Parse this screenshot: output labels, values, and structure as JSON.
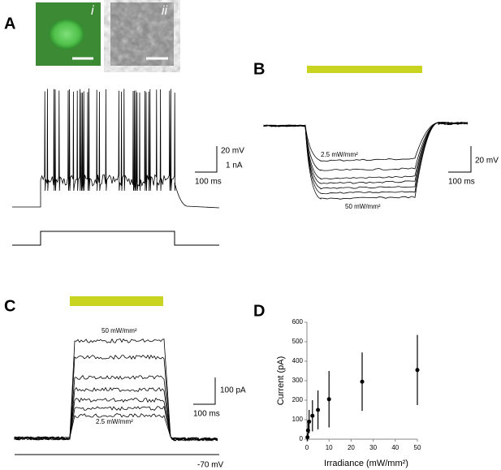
{
  "panels": {
    "a": {
      "label": "A",
      "image_labels": [
        "i",
        "ii"
      ],
      "scale": [
        "20 mV",
        "1 nA",
        "100 ms"
      ]
    },
    "b": {
      "label": "B",
      "scale": [
        "20 mV",
        "100 ms"
      ],
      "low": "2.5 mW/mm²",
      "high": "50 mW/mm²"
    },
    "c": {
      "label": "C",
      "scale": [
        "100 pA",
        "100 ms"
      ],
      "low": "2.5 mW/mm²",
      "high": "50 mW/mm²",
      "holding": "-70 mV"
    },
    "d": {
      "label": "D"
    }
  },
  "chart_data": {
    "type": "scatter",
    "x_label": "Irradiance (mW/mm²)",
    "y_label": "Current (pA)",
    "x": [
      0.25,
      0.5,
      1,
      2.5,
      5,
      10,
      25,
      50
    ],
    "values": [
      10,
      45,
      90,
      120,
      150,
      205,
      295,
      355
    ],
    "errors": [
      20,
      40,
      60,
      80,
      100,
      145,
      150,
      180
    ],
    "color": "#000000",
    "xlim": [
      0,
      50
    ],
    "ylim": [
      0,
      600
    ],
    "xticks": [
      0,
      10,
      20,
      30,
      40,
      50
    ],
    "yticks": [
      0,
      100,
      200,
      300,
      400,
      500,
      600
    ]
  }
}
